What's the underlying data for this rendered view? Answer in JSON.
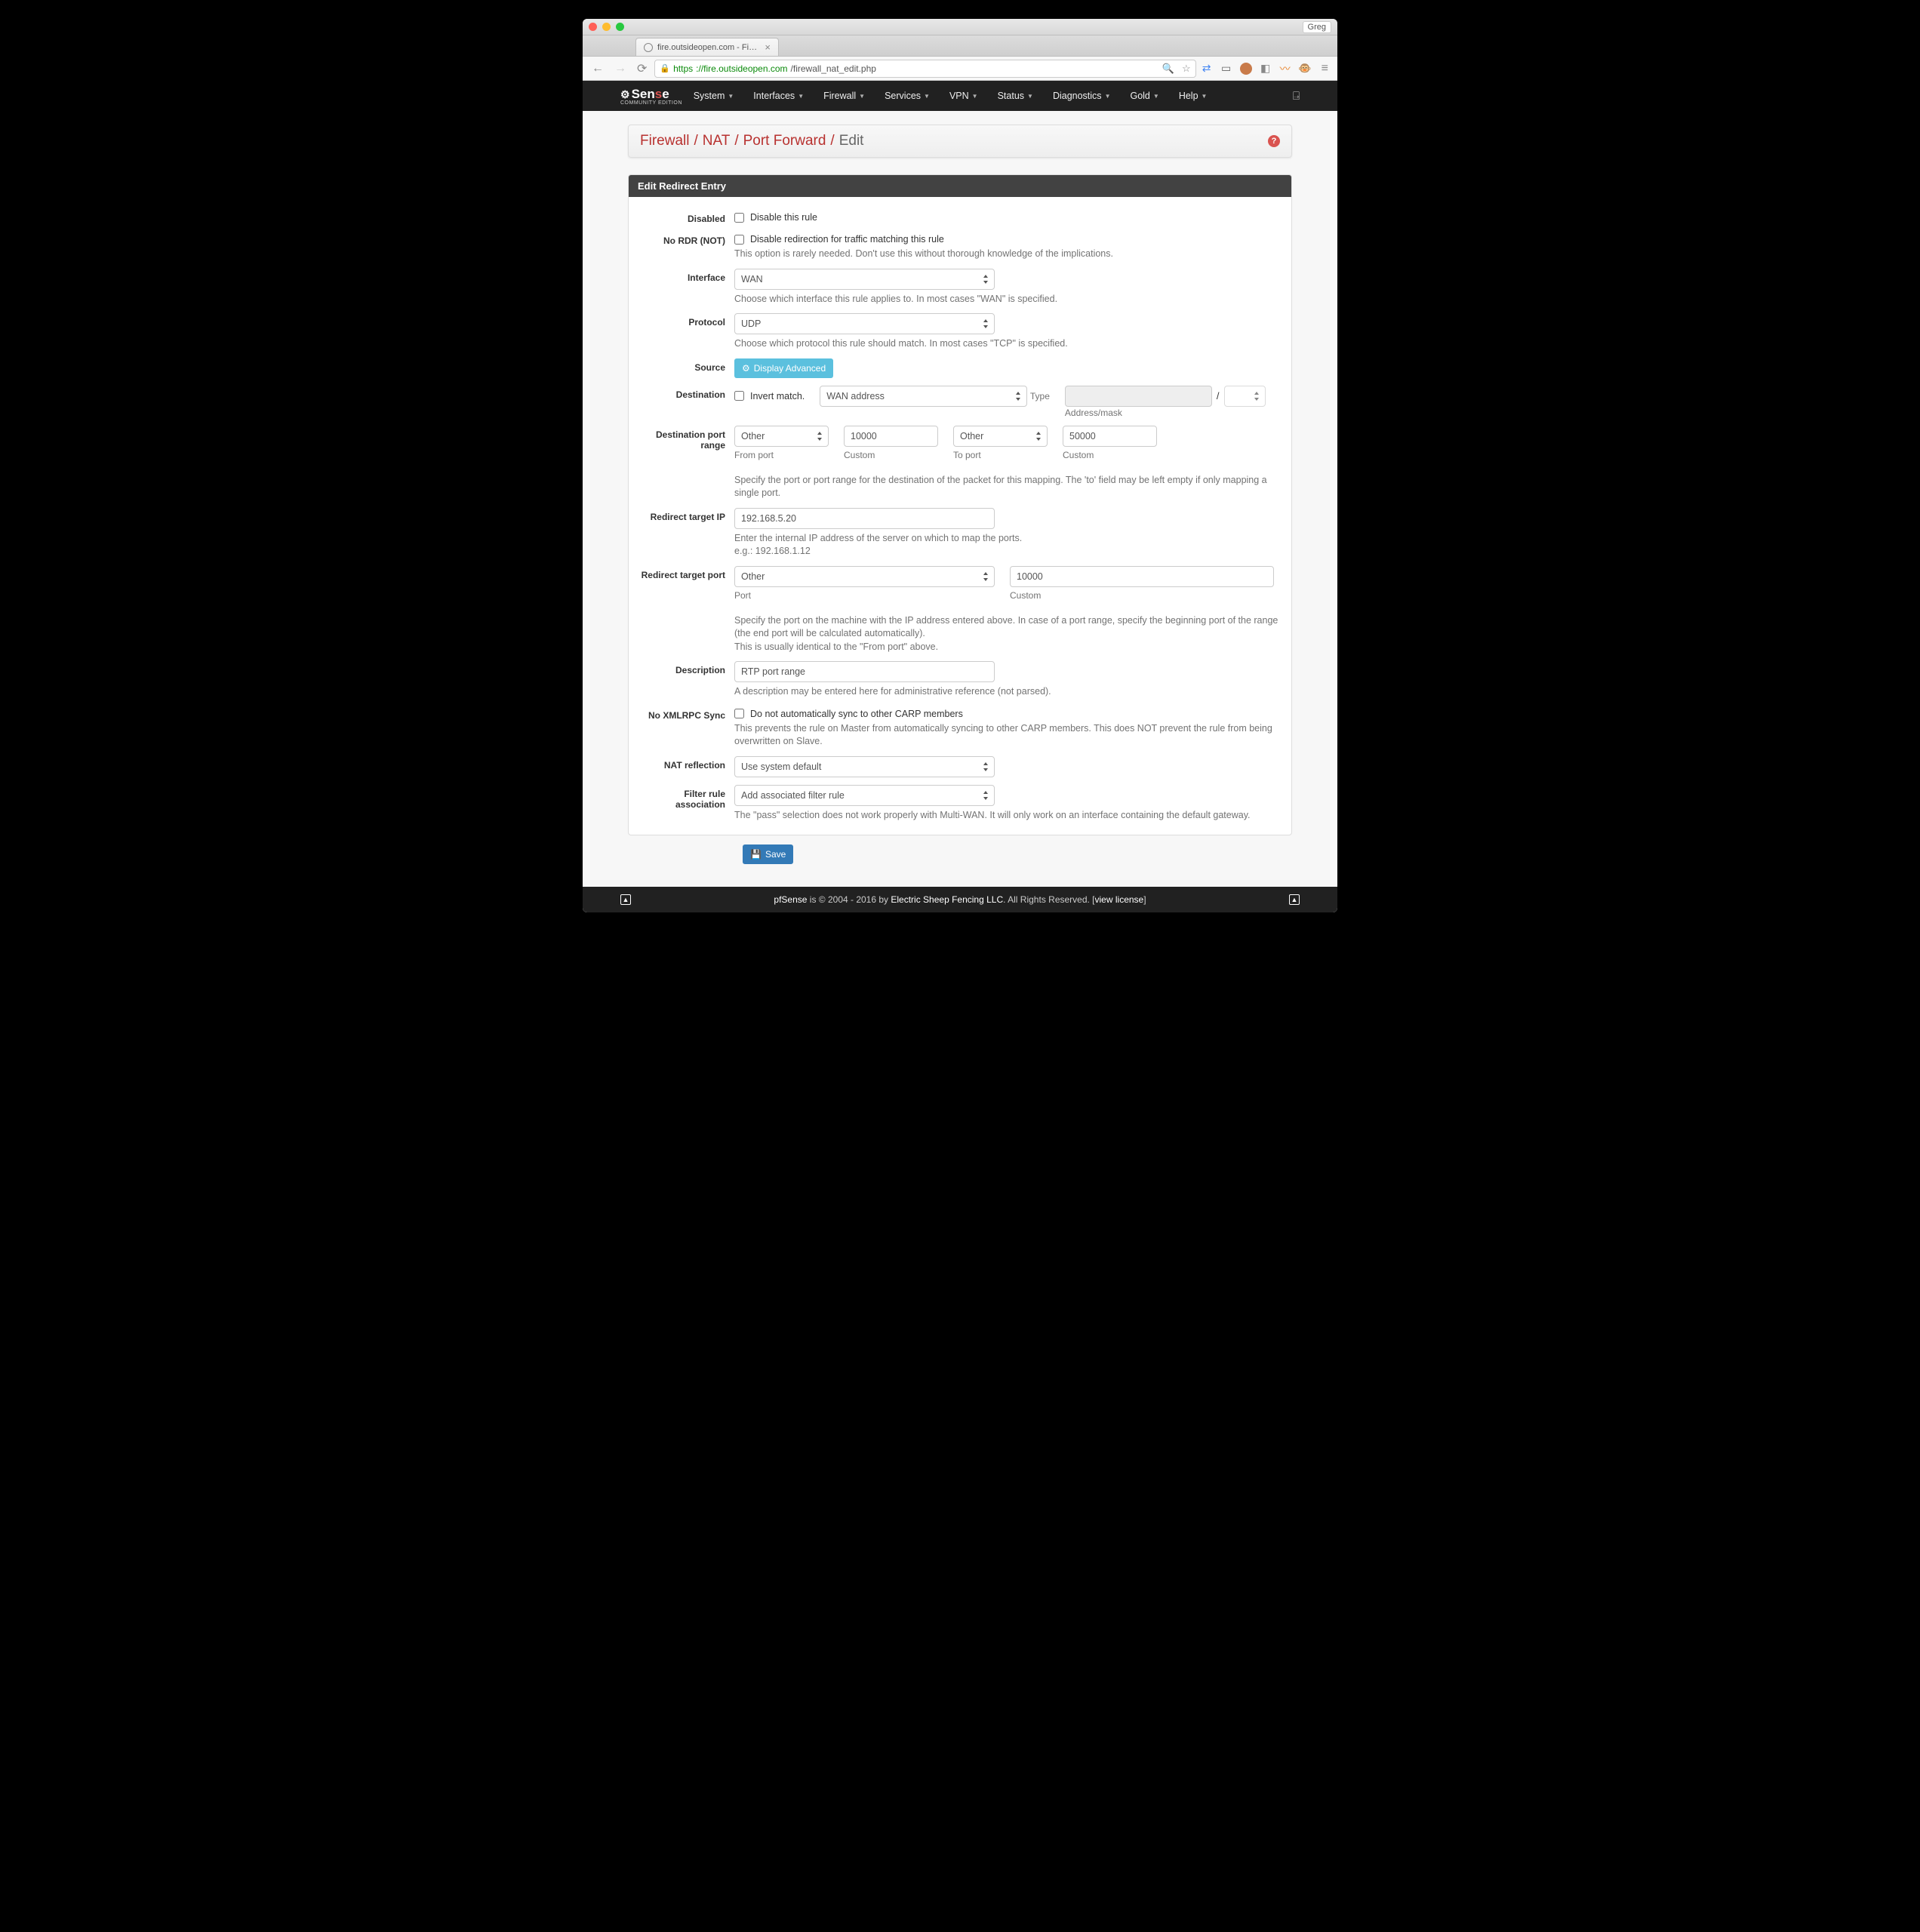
{
  "browser": {
    "profile": "Greg",
    "tab_title": "fire.outsideopen.com - Fire...",
    "url_https": "https",
    "url_host": "://fire.outsideopen.com",
    "url_path": "/firewall_nat_edit.php"
  },
  "nav": {
    "items": [
      "System",
      "Interfaces",
      "Firewall",
      "Services",
      "VPN",
      "Status",
      "Diagnostics",
      "Gold",
      "Help"
    ],
    "logo_main": "Sen",
    "logo_red": "s",
    "logo_end": "e",
    "logo_sub": "COMMUNITY EDITION"
  },
  "breadcrumb": {
    "items": [
      "Firewall",
      "NAT",
      "Port Forward"
    ],
    "last": "Edit"
  },
  "panel_title": "Edit Redirect Entry",
  "fields": {
    "disabled": {
      "label": "Disabled",
      "text": "Disable this rule"
    },
    "nordr": {
      "label": "No RDR (NOT)",
      "text": "Disable redirection for traffic matching this rule",
      "help": "This option is rarely needed. Don't use this without thorough knowledge of the implications."
    },
    "interface": {
      "label": "Interface",
      "value": "WAN",
      "help": "Choose which interface this rule applies to. In most cases \"WAN\" is specified."
    },
    "protocol": {
      "label": "Protocol",
      "value": "UDP",
      "help": "Choose which protocol this rule should match. In most cases \"TCP\" is specified."
    },
    "source": {
      "label": "Source",
      "button": "Display Advanced"
    },
    "destination": {
      "label": "Destination",
      "invert": "Invert match.",
      "type_value": "WAN address",
      "type_label": "Type",
      "mask_sep": "/",
      "mask_label": "Address/mask"
    },
    "dstport": {
      "label": "Destination port range",
      "from_value": "Other",
      "from_custom": "10000",
      "from_label": "From port",
      "custom_label": "Custom",
      "to_value": "Other",
      "to_custom": "50000",
      "to_label": "To port",
      "help": "Specify the port or port range for the destination of the packet for this mapping. The 'to' field may be left empty if only mapping a single port."
    },
    "targetip": {
      "label": "Redirect target IP",
      "value": "192.168.5.20",
      "help1": "Enter the internal IP address of the server on which to map the ports.",
      "help2": "e.g.: 192.168.1.12"
    },
    "targetport": {
      "label": "Redirect target port",
      "port_value": "Other",
      "port_label": "Port",
      "custom_value": "10000",
      "custom_label": "Custom",
      "help1": "Specify the port on the machine with the IP address entered above. In case of a port range, specify the beginning port of the range (the end port will be calculated automatically).",
      "help2": "This is usually identical to the \"From port\" above."
    },
    "description": {
      "label": "Description",
      "value": "RTP port range",
      "help": "A description may be entered here for administrative reference (not parsed)."
    },
    "noxmlrpc": {
      "label": "No XMLRPC Sync",
      "text": "Do not automatically sync to other CARP members",
      "help": "This prevents the rule on Master from automatically syncing to other CARP members. This does NOT prevent the rule from being overwritten on Slave."
    },
    "natreflect": {
      "label": "NAT reflection",
      "value": "Use system default"
    },
    "filterrule": {
      "label": "Filter rule association",
      "value": "Add associated filter rule",
      "help": "The \"pass\" selection does not work properly with Multi-WAN. It will only work on an interface containing the default gateway."
    }
  },
  "save": "Save",
  "footer": {
    "brand": "pfSense",
    "copyright": " is © 2004 - 2016 by ",
    "company": "Electric Sheep Fencing LLC",
    "rights": ". All Rights Reserved. [",
    "license": "view license",
    "close": "]"
  }
}
